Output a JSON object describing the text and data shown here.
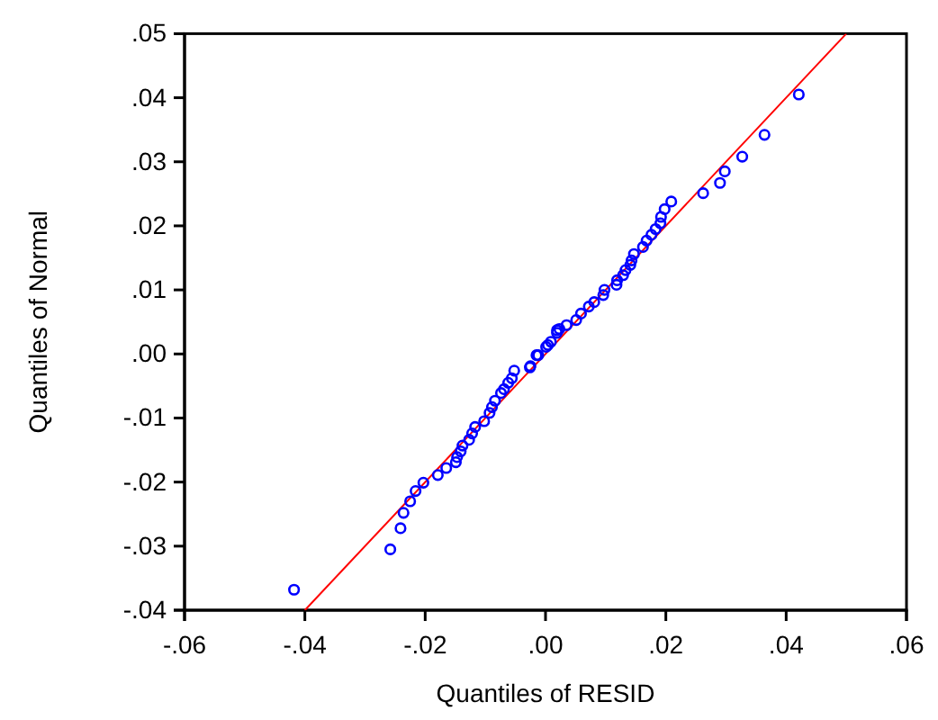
{
  "chart_data": {
    "type": "scatter",
    "xlabel": "Quantiles of RESID",
    "ylabel": "Quantiles of Normal",
    "xlim": [
      -0.06,
      0.06
    ],
    "ylim": [
      -0.04,
      0.05
    ],
    "xticks": [
      {
        "value": -0.06,
        "label": "-.06"
      },
      {
        "value": -0.04,
        "label": "-.04"
      },
      {
        "value": -0.02,
        "label": "-.02"
      },
      {
        "value": 0,
        "label": ".00"
      },
      {
        "value": 0.02,
        "label": ".02"
      },
      {
        "value": 0.04,
        "label": ".04"
      },
      {
        "value": 0.06,
        "label": ".06"
      }
    ],
    "yticks": [
      {
        "value": -0.04,
        "label": "-.04"
      },
      {
        "value": -0.03,
        "label": "-.03"
      },
      {
        "value": -0.02,
        "label": "-.02"
      },
      {
        "value": -0.01,
        "label": "-.01"
      },
      {
        "value": 0,
        "label": ".00"
      },
      {
        "value": 0.01,
        "label": ".01"
      },
      {
        "value": 0.02,
        "label": ".02"
      },
      {
        "value": 0.03,
        "label": ".03"
      },
      {
        "value": 0.04,
        "label": ".04"
      },
      {
        "value": 0.05,
        "label": ".05"
      }
    ],
    "grid": false,
    "series": [
      {
        "type": "line",
        "color": "#ff0000",
        "marker": "none",
        "line_style": "solid",
        "x": [
          -0.04,
          0.05
        ],
        "values": [
          -0.04,
          0.05
        ]
      },
      {
        "color": "#0000ff",
        "marker": "circle",
        "x": [
          -0.0418,
          -0.0258,
          -0.0241,
          -0.0236,
          -0.0225,
          -0.0216,
          -0.0203,
          -0.0179,
          -0.0165,
          -0.0149,
          -0.0147,
          -0.0141,
          -0.0138,
          -0.0127,
          -0.0122,
          -0.0117,
          -0.0102,
          -0.0093,
          -0.0089,
          -0.0084,
          -0.0074,
          -0.0069,
          -0.0062,
          -0.0056,
          -0.0052,
          -0.0026,
          -0.0025,
          -0.0015,
          -0.0012,
          0.0001,
          0.0004,
          0.0009,
          0.0019,
          0.0019,
          0.0023,
          0.0035,
          0.0051,
          0.0059,
          0.0072,
          0.0081,
          0.0096,
          0.0098,
          0.0118,
          0.0119,
          0.0129,
          0.0133,
          0.0141,
          0.0143,
          0.0147,
          0.0162,
          0.0168,
          0.0176,
          0.0183,
          0.0191,
          0.0192,
          0.0198,
          0.0209,
          0.0262,
          0.029,
          0.0298,
          0.0327,
          0.0364,
          0.0421
        ],
        "values": [
          -0.0368,
          -0.0305,
          -0.0272,
          -0.0248,
          -0.023,
          -0.0214,
          -0.0201,
          -0.0189,
          -0.0178,
          -0.0169,
          -0.0161,
          -0.0152,
          -0.0143,
          -0.0134,
          -0.0124,
          -0.0114,
          -0.0105,
          -0.0092,
          -0.0083,
          -0.0073,
          -0.0061,
          -0.0055,
          -0.0045,
          -0.0038,
          -0.0026,
          -0.0021,
          -0.0019,
          -0.0002,
          -0.0002,
          0.0011,
          0.0014,
          0.0019,
          0.0033,
          0.0037,
          0.0039,
          0.0045,
          0.0053,
          0.0063,
          0.0074,
          0.0081,
          0.0092,
          0.01,
          0.0108,
          0.0115,
          0.0123,
          0.0131,
          0.0139,
          0.0146,
          0.0156,
          0.0167,
          0.0177,
          0.0186,
          0.0195,
          0.0204,
          0.0214,
          0.0226,
          0.0238,
          0.0251,
          0.0267,
          0.0285,
          0.0308,
          0.0342,
          0.0405
        ]
      }
    ]
  }
}
